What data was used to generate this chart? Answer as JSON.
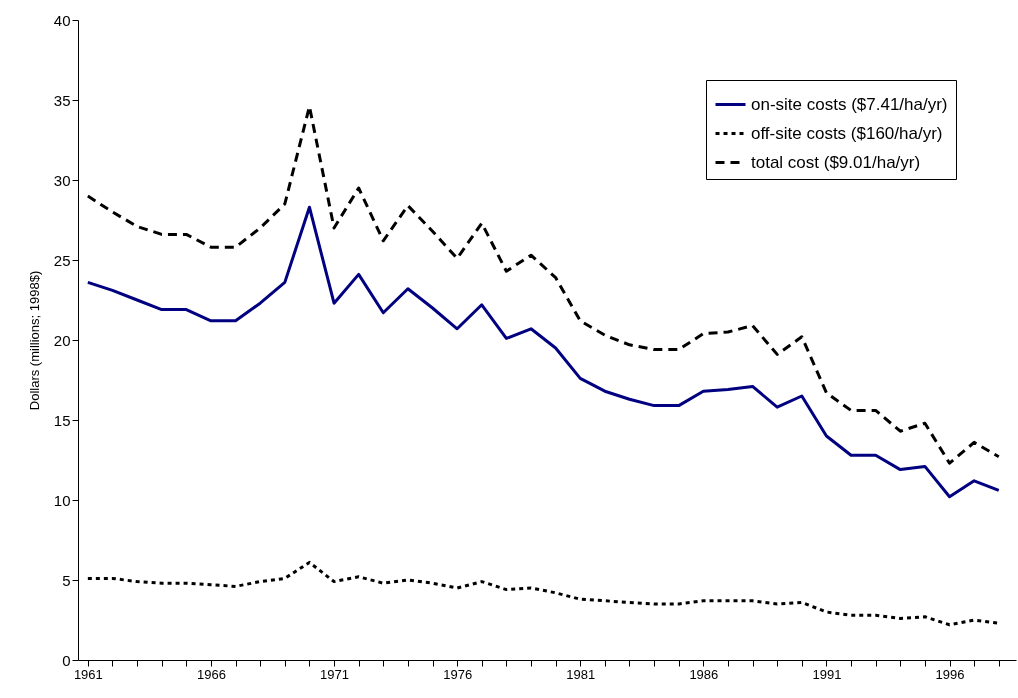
{
  "chart_data": {
    "type": "line",
    "ylabel": "Dollars (millions; 1998$)",
    "x": [
      1961,
      1962,
      1963,
      1964,
      1965,
      1966,
      1967,
      1968,
      1969,
      1970,
      1971,
      1972,
      1973,
      1974,
      1975,
      1976,
      1977,
      1978,
      1979,
      1980,
      1981,
      1982,
      1983,
      1984,
      1985,
      1986,
      1987,
      1988,
      1989,
      1990,
      1991,
      1992,
      1993,
      1994,
      1995,
      1996,
      1997,
      1998
    ],
    "series": [
      {
        "name": "on-site costs ($7.41/ha/yr)",
        "color": "#000080",
        "line_style": "solid",
        "values": [
          23.6,
          23.1,
          22.5,
          21.9,
          21.9,
          21.2,
          21.2,
          22.3,
          23.6,
          28.3,
          22.3,
          24.1,
          21.7,
          23.2,
          22.0,
          20.7,
          22.2,
          20.1,
          20.7,
          19.5,
          17.6,
          16.8,
          16.3,
          15.9,
          15.9,
          16.8,
          16.9,
          17.1,
          15.8,
          16.5,
          14.0,
          12.8,
          12.8,
          11.9,
          12.1,
          10.2,
          11.2,
          10.6
        ]
      },
      {
        "name": "off-site costs ($160/ha/yr)",
        "color": "#000000",
        "line_style": "dotted",
        "values": [
          5.1,
          5.1,
          4.9,
          4.8,
          4.8,
          4.7,
          4.6,
          4.9,
          5.1,
          6.1,
          4.9,
          5.2,
          4.8,
          5.0,
          4.8,
          4.5,
          4.9,
          4.4,
          4.5,
          4.2,
          3.8,
          3.7,
          3.6,
          3.5,
          3.5,
          3.7,
          3.7,
          3.7,
          3.5,
          3.6,
          3.0,
          2.8,
          2.8,
          2.6,
          2.7,
          2.2,
          2.5,
          2.3
        ]
      },
      {
        "name": "total cost ($9.01/ha/yr)",
        "color": "#000000",
        "line_style": "dashed",
        "values": [
          29.0,
          28.0,
          27.1,
          26.6,
          26.6,
          25.8,
          25.8,
          27.0,
          28.5,
          34.6,
          27.0,
          29.5,
          26.2,
          28.4,
          26.8,
          25.1,
          27.3,
          24.3,
          25.3,
          23.9,
          21.2,
          20.3,
          19.7,
          19.4,
          19.4,
          20.4,
          20.5,
          20.9,
          19.1,
          20.2,
          16.7,
          15.6,
          15.6,
          14.3,
          14.8,
          12.3,
          13.6,
          12.7
        ]
      }
    ],
    "xlim": [
      1960.6,
      1998.7
    ],
    "xticks": [
      1961,
      {
        "value": 1962,
        "label": null
      },
      {
        "value": 1963,
        "label": null
      },
      {
        "value": 1964,
        "label": null
      },
      {
        "value": 1965,
        "label": null
      },
      1966,
      {
        "value": 1967,
        "label": null
      },
      {
        "value": 1968,
        "label": null
      },
      {
        "value": 1969,
        "label": null
      },
      {
        "value": 1970,
        "label": null
      },
      1971,
      {
        "value": 1972,
        "label": null
      },
      {
        "value": 1973,
        "label": null
      },
      {
        "value": 1974,
        "label": null
      },
      {
        "value": 1975,
        "label": null
      },
      1976,
      {
        "value": 1977,
        "label": null
      },
      {
        "value": 1978,
        "label": null
      },
      {
        "value": 1979,
        "label": null
      },
      {
        "value": 1980,
        "label": null
      },
      1981,
      {
        "value": 1982,
        "label": null
      },
      {
        "value": 1983,
        "label": null
      },
      {
        "value": 1984,
        "label": null
      },
      {
        "value": 1985,
        "label": null
      },
      1986,
      {
        "value": 1987,
        "label": null
      },
      {
        "value": 1988,
        "label": null
      },
      {
        "value": 1989,
        "label": null
      },
      {
        "value": 1990,
        "label": null
      },
      1991,
      {
        "value": 1992,
        "label": null
      },
      {
        "value": 1993,
        "label": null
      },
      {
        "value": 1994,
        "label": null
      },
      {
        "value": 1995,
        "label": null
      },
      1996,
      {
        "value": 1997,
        "label": null
      },
      {
        "value": 1998,
        "label": null
      }
    ],
    "ylim": [
      0,
      40
    ],
    "yticks": [
      0,
      5,
      10,
      15,
      20,
      25,
      30,
      35,
      40
    ],
    "grid": false,
    "legend": "top right"
  }
}
